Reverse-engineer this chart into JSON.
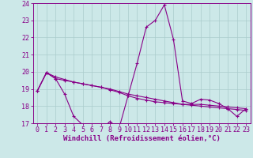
{
  "xlabel": "Windchill (Refroidissement éolien,°C)",
  "xlim": [
    -0.5,
    23.5
  ],
  "ylim": [
    17,
    24
  ],
  "yticks": [
    17,
    18,
    19,
    20,
    21,
    22,
    23,
    24
  ],
  "xticks": [
    0,
    1,
    2,
    3,
    4,
    5,
    6,
    7,
    8,
    9,
    10,
    11,
    12,
    13,
    14,
    15,
    16,
    17,
    18,
    19,
    20,
    21,
    22,
    23
  ],
  "background_color": "#cce8e8",
  "grid_color": "#aacccc",
  "line_color": "#880088",
  "line1_y": [
    18.9,
    19.95,
    19.6,
    18.7,
    17.4,
    16.9,
    16.7,
    16.65,
    17.1,
    16.7,
    18.6,
    20.5,
    22.6,
    23.0,
    23.9,
    21.9,
    18.3,
    18.15,
    18.4,
    18.35,
    18.15,
    17.85,
    17.4,
    17.85
  ],
  "line2_y": [
    18.9,
    19.95,
    19.6,
    19.5,
    19.4,
    19.3,
    19.2,
    19.1,
    19.0,
    18.85,
    18.7,
    18.6,
    18.5,
    18.4,
    18.3,
    18.2,
    18.1,
    18.05,
    18.0,
    17.95,
    17.9,
    17.85,
    17.8,
    17.75
  ],
  "line3_y": [
    18.9,
    19.95,
    19.7,
    19.55,
    19.4,
    19.3,
    19.2,
    19.1,
    18.95,
    18.8,
    18.6,
    18.45,
    18.35,
    18.25,
    18.2,
    18.15,
    18.1,
    18.1,
    18.1,
    18.05,
    18.0,
    17.95,
    17.9,
    17.85
  ],
  "tick_fontsize": 6,
  "xlabel_fontsize": 6.5
}
